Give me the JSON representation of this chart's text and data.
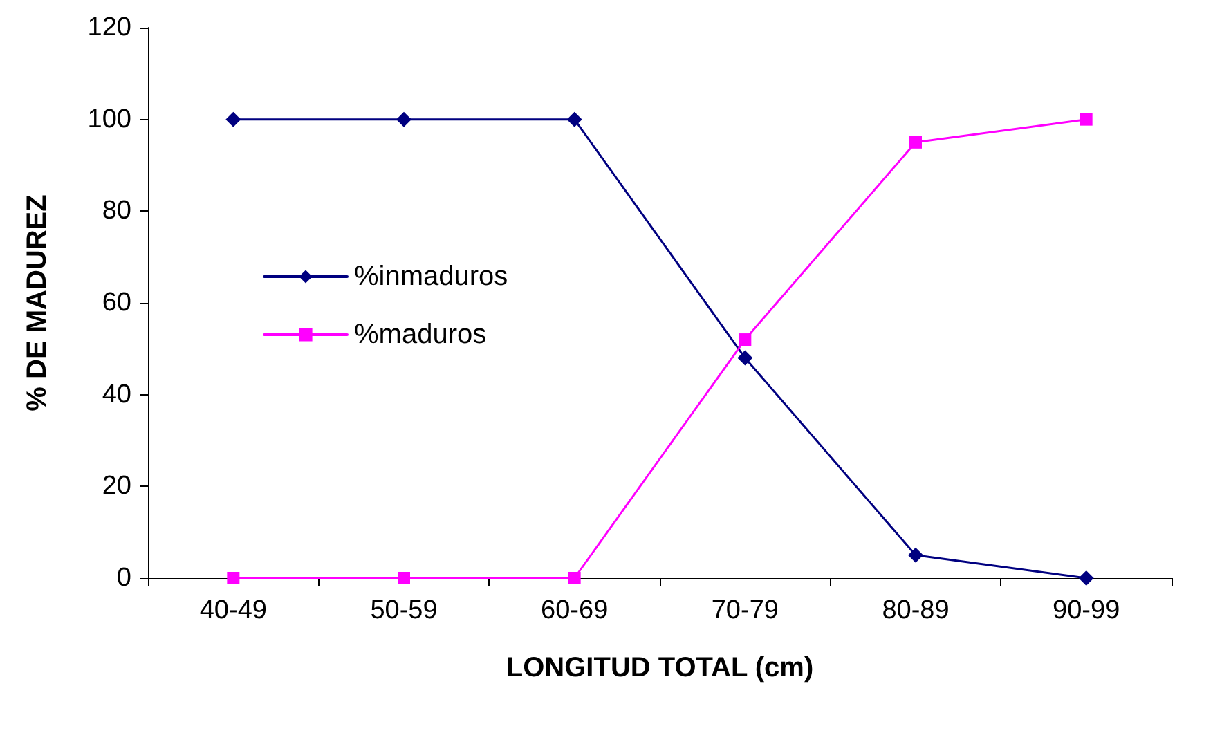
{
  "chart_data": {
    "type": "line",
    "xlabel": "LONGITUD TOTAL (cm)",
    "ylabel": "% DE MADUREZ",
    "categories": [
      "40-49",
      "50-59",
      "60-69",
      "70-79",
      "80-89",
      "90-99"
    ],
    "series": [
      {
        "name": "%inmaduros",
        "color": "#000080",
        "marker": "diamond",
        "values": [
          100,
          100,
          100,
          48,
          5,
          0
        ]
      },
      {
        "name": "%maduros",
        "color": "#ff00ff",
        "marker": "square",
        "values": [
          0,
          0,
          0,
          52,
          95,
          100
        ]
      }
    ],
    "ylim": [
      0,
      120
    ],
    "yticks": [
      0,
      20,
      40,
      60,
      80,
      100,
      120
    ],
    "grid": false,
    "legend": "left",
    "line_style": "solid"
  }
}
